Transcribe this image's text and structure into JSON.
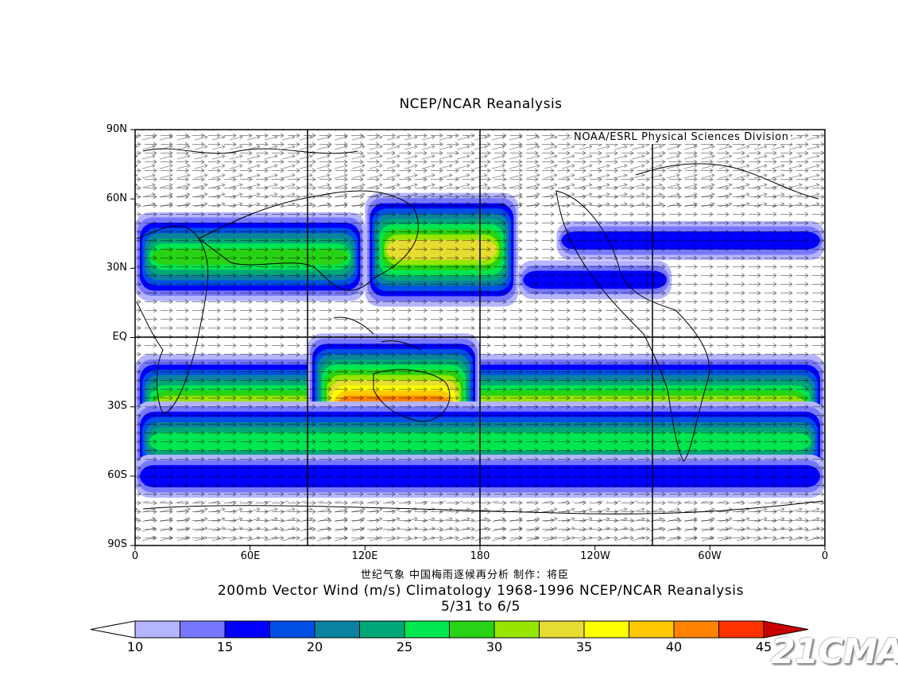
{
  "plot": {
    "title": "NCEP/NCAR Reanalysis",
    "credit": "NOAA/ESRL Physical Sciences Division",
    "note": "世纪气象   中国梅雨逐候再分析   制作：将臣",
    "main_title": "200mb Vector Wind (m/s) Climatology 1968-1996 NCEP/NCAR Reanalysis",
    "date_range": "5/31  to 6/5",
    "watermark": "21CMA"
  },
  "axes": {
    "y_labels": [
      "90N",
      "60N",
      "30N",
      "EQ",
      "30S",
      "60S",
      "90S"
    ],
    "x_labels": [
      "0",
      "60E",
      "120E",
      "180",
      "120W",
      "60W",
      "0"
    ]
  },
  "colorbar": {
    "labels": [
      "10",
      "15",
      "20",
      "25",
      "30",
      "35",
      "40",
      "45"
    ],
    "colors": [
      "#ffffff",
      "#b4b4ff",
      "#7878ff",
      "#0000ff",
      "#0050e6",
      "#0a82a0",
      "#00a878",
      "#00e650",
      "#28d214",
      "#96e600",
      "#e6dc32",
      "#ffff00",
      "#ffc800",
      "#ff8200",
      "#ff3200",
      "#c80000"
    ]
  },
  "chart_data": {
    "type": "heatmap",
    "variable": "200mb Vector Wind (m/s)",
    "xlabel": "",
    "ylabel": "",
    "lon_range": [
      0,
      360
    ],
    "lat_range": [
      -90,
      90
    ],
    "bands": [
      {
        "lat_center": 35,
        "lon_from": 0,
        "lon_to": 120,
        "speed": 28
      },
      {
        "lat_center": 38,
        "lon_from": 120,
        "lon_to": 200,
        "speed": 34
      },
      {
        "lat_center": 42,
        "lon_from": 220,
        "lon_to": 360,
        "speed": 16
      },
      {
        "lat_center": 25,
        "lon_from": 200,
        "lon_to": 280,
        "speed": 16
      },
      {
        "lat_center": -30,
        "lon_from": 0,
        "lon_to": 360,
        "speed": 32
      },
      {
        "lat_center": -30,
        "lon_from": 90,
        "lon_to": 180,
        "speed": 42
      },
      {
        "lat_center": -45,
        "lon_from": 0,
        "lon_to": 360,
        "speed": 26
      },
      {
        "lat_center": -60,
        "lon_from": 0,
        "lon_to": 360,
        "speed": 17
      }
    ]
  }
}
